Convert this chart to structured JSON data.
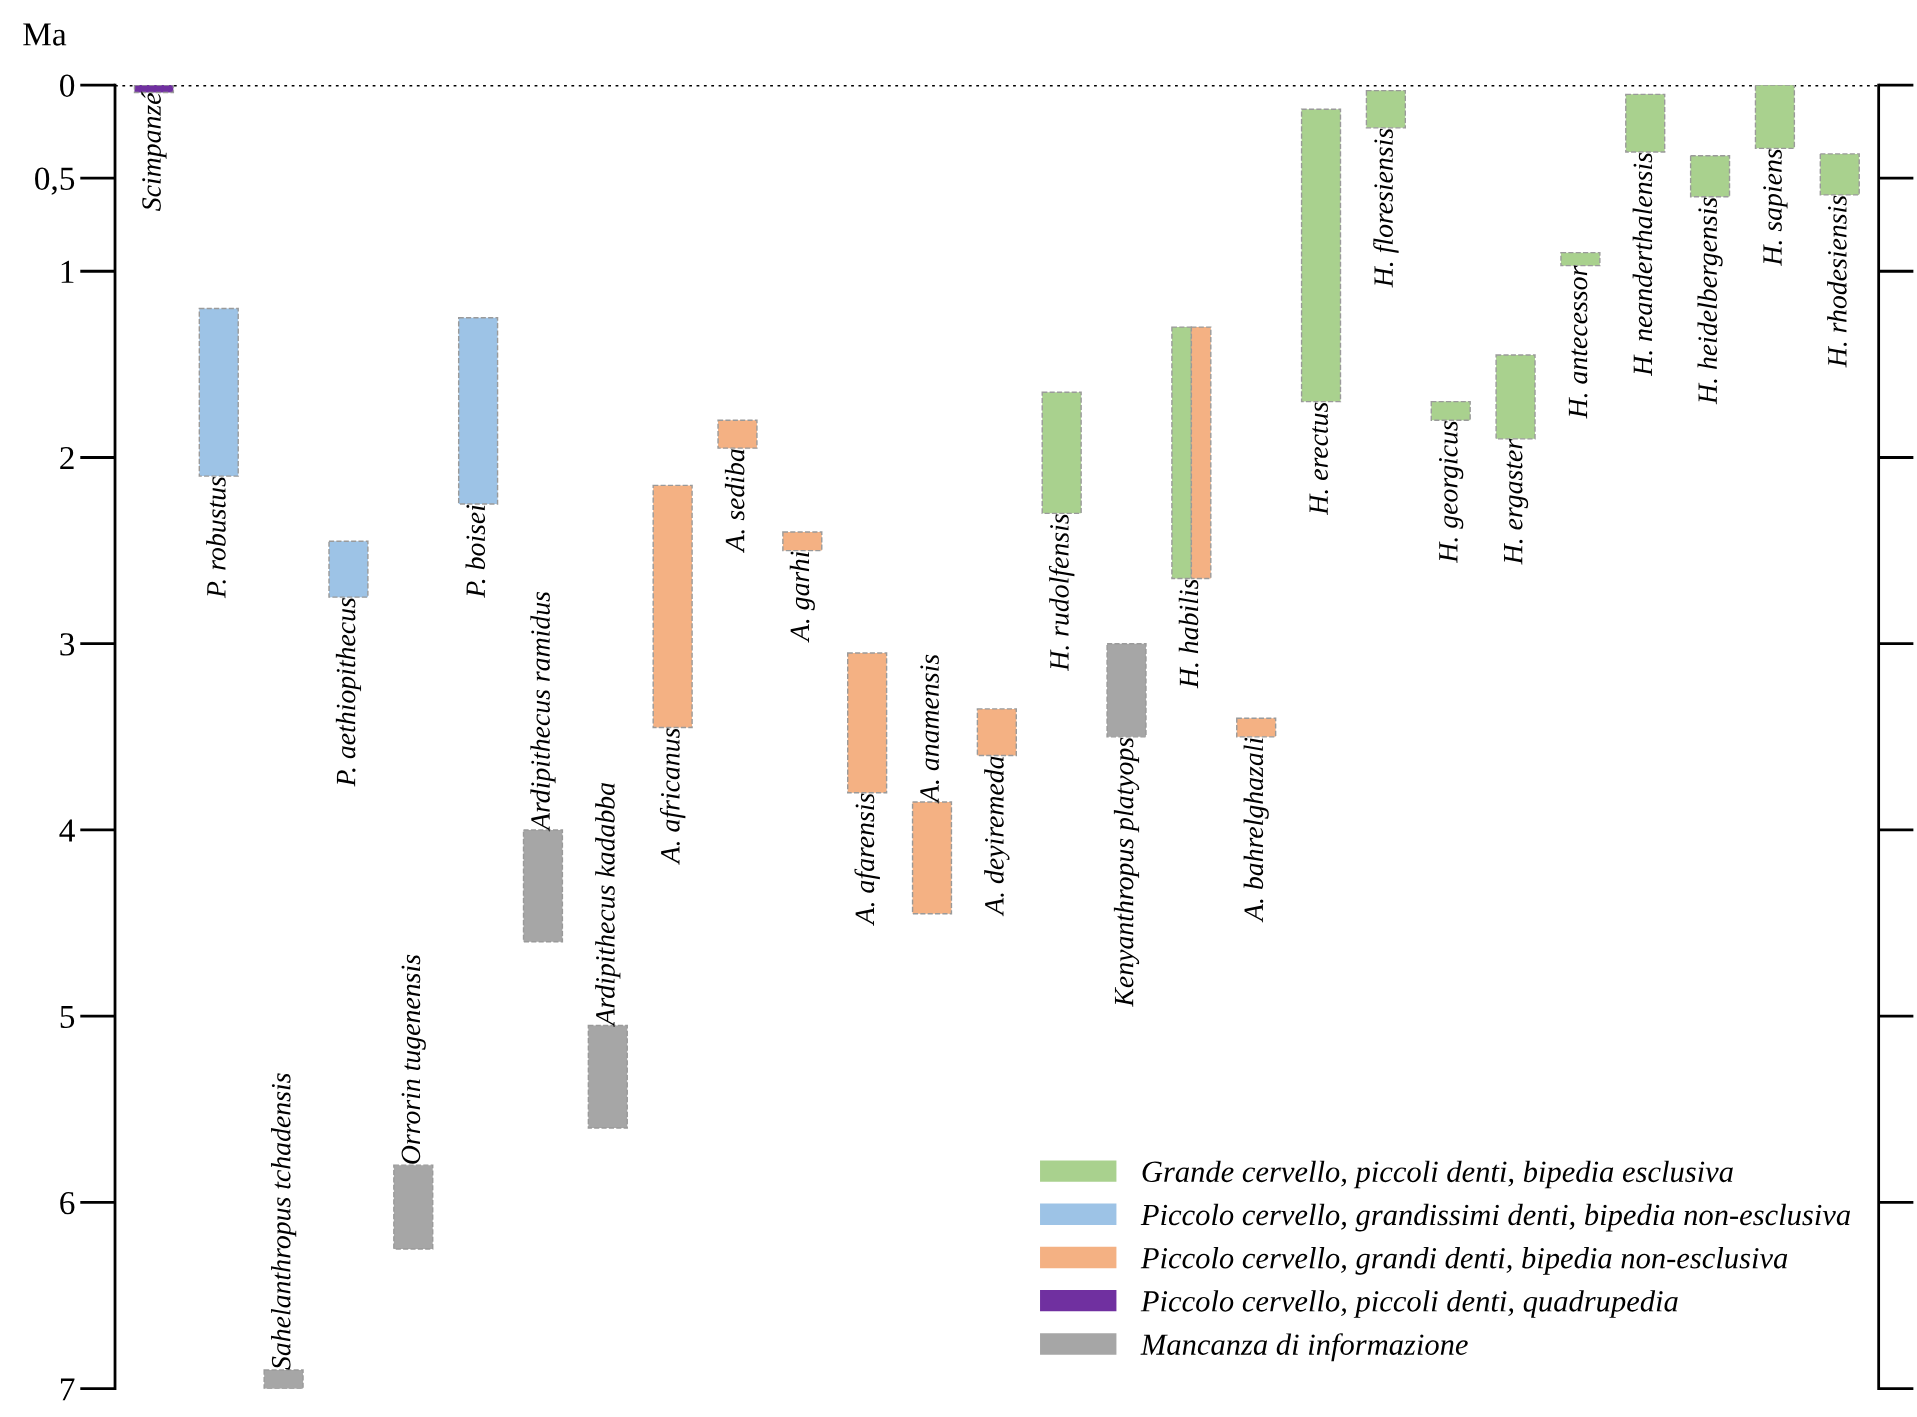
{
  "chart_data": {
    "type": "bar",
    "ylabel": "Ma",
    "categories": [
      "Scimpanzé",
      "P. robustus",
      "Sahelanthropus tchadensis",
      "P. aethiopithecus",
      "Orrorin tugenensis",
      "P. boisei",
      "Ardipithecus ramidus",
      "Ardipithecus kadabba",
      "A. africanus",
      "A. sediba",
      "A. garhi",
      "A. afarensis",
      "A. anamensis",
      "A. deyiremeda",
      "H. rudolfensis",
      "Kenyanthropus platyops",
      "H. habilis",
      "A. bahrelghazali",
      "H. erectus",
      "H. floresiensis",
      "H. georgicus",
      "H. ergaster",
      "H. antecessor",
      "H. neanderthalensis",
      "H. heidelbergensis",
      "H. sapiens",
      "H. rhodesiensis"
    ],
    "series": [
      {
        "name": "Grande cervello, piccoli denti, bipedia esclusiva",
        "color": "#a9d18e",
        "base": [
          null,
          null,
          null,
          null,
          null,
          null,
          null,
          null,
          null,
          null,
          null,
          null,
          null,
          null,
          1.65,
          null,
          1.3,
          null,
          0.13,
          0.03,
          1.7,
          1.45,
          0.9,
          0.05,
          0.38,
          0,
          0.37
        ],
        "values": [
          null,
          null,
          null,
          null,
          null,
          null,
          null,
          null,
          null,
          null,
          null,
          null,
          null,
          null,
          0.65,
          null,
          1.35,
          null,
          1.57,
          0.2,
          0.1,
          0.45,
          0.07,
          0.31,
          0.22,
          0.34,
          0.22
        ]
      },
      {
        "name": "Piccolo cervello, grandissimi denti, bipedia non-esclusiva",
        "color": "#9dc3e6",
        "base": [
          null,
          1.2,
          null,
          2.45,
          null,
          1.25,
          null,
          null,
          null,
          null,
          null,
          null,
          null,
          null,
          null,
          null,
          null,
          null,
          null,
          null,
          null,
          null,
          null,
          null,
          null,
          null,
          null
        ],
        "values": [
          null,
          0.9,
          null,
          0.3,
          null,
          1.0,
          null,
          null,
          null,
          null,
          null,
          null,
          null,
          null,
          null,
          null,
          null,
          null,
          null,
          null,
          null,
          null,
          null,
          null,
          null,
          null,
          null
        ]
      },
      {
        "name": "Piccolo cervello, grandi denti, bipedia non-esclusiva",
        "color": "#f4b183",
        "base": [
          null,
          null,
          null,
          null,
          null,
          null,
          null,
          null,
          2.15,
          1.8,
          2.4,
          3.05,
          3.85,
          3.35,
          null,
          null,
          1.3,
          3.4,
          null,
          null,
          null,
          null,
          null,
          null,
          null,
          null,
          null
        ],
        "values": [
          null,
          null,
          null,
          null,
          null,
          null,
          null,
          null,
          1.3,
          0.15,
          0.1,
          0.75,
          0.6,
          0.25,
          null,
          null,
          1.35,
          0.1,
          null,
          null,
          null,
          null,
          null,
          null,
          null,
          null,
          null
        ]
      },
      {
        "name": "Piccolo cervello, piccoli denti, quadrupedia",
        "color": "#7030a0",
        "base": [
          0,
          null,
          null,
          null,
          null,
          null,
          null,
          null,
          null,
          null,
          null,
          null,
          null,
          null,
          null,
          null,
          null,
          null,
          null,
          null,
          null,
          null,
          null,
          null,
          null,
          null,
          null
        ],
        "values": [
          0.04,
          null,
          null,
          null,
          null,
          null,
          null,
          null,
          null,
          null,
          null,
          null,
          null,
          null,
          null,
          null,
          null,
          null,
          null,
          null,
          null,
          null,
          null,
          null,
          null,
          null,
          null
        ]
      },
      {
        "name": "Mancanza di informazione",
        "color": "#a6a6a6",
        "base": [
          null,
          null,
          6.9,
          null,
          5.8,
          null,
          4.0,
          5.05,
          null,
          null,
          null,
          null,
          null,
          null,
          null,
          3.0,
          null,
          null,
          null,
          null,
          null,
          null,
          null,
          null,
          null,
          null,
          null
        ],
        "values": [
          null,
          null,
          0.1,
          null,
          0.45,
          null,
          0.6,
          0.55,
          null,
          null,
          null,
          null,
          null,
          null,
          null,
          0.5,
          null,
          null,
          null,
          null,
          null,
          null,
          null,
          null,
          null,
          null,
          null
        ]
      }
    ],
    "ylim": [
      7,
      0
    ],
    "yticks": [
      0,
      {
        "value": 0.5,
        "label": "0,5"
      },
      1,
      2,
      3,
      4,
      5,
      6,
      7
    ],
    "tick_labels": "y",
    "ref_lines": [
      {
        "axis": "y",
        "value": 0,
        "color": "#000000",
        "line_style": "dotted"
      }
    ],
    "legend": "bottom right",
    "grid": false
  }
}
